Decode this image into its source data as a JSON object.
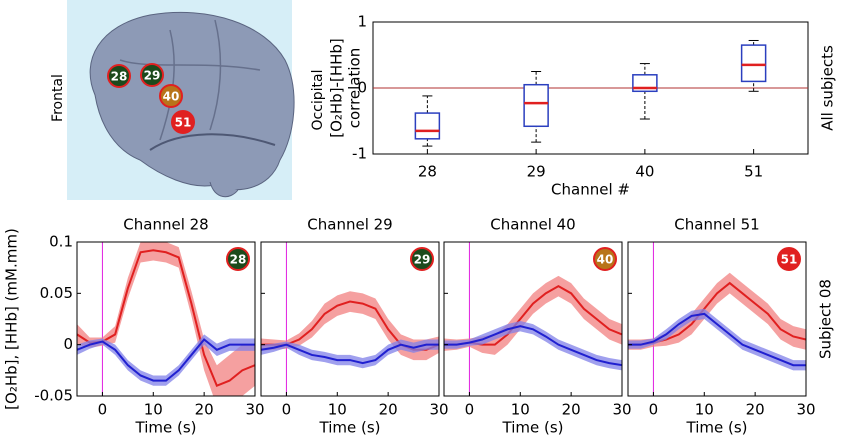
{
  "brain": {
    "left_label": "Frontal",
    "right_label": "Occipital",
    "badges": [
      "28",
      "29",
      "40",
      "51"
    ]
  },
  "chart_data": [
    {
      "type": "box",
      "ylabel": [
        "[O₂Hb]-[HHb]",
        "correlation"
      ],
      "xlabel": "Channel #",
      "side_label": "All subjects",
      "categories": [
        "28",
        "29",
        "40",
        "51"
      ],
      "ylim": [
        -1,
        1
      ],
      "yticks": [
        -1,
        0,
        1
      ],
      "reference_line": 0,
      "box_color": "#2b3fbf",
      "median_color": "#e02020",
      "reference_color": "#b03030",
      "boxes": [
        {
          "low": -0.88,
          "q1": -0.77,
          "median": -0.65,
          "q3": -0.38,
          "high": -0.12
        },
        {
          "low": -0.82,
          "q1": -0.58,
          "median": -0.23,
          "q3": 0.05,
          "high": 0.25
        },
        {
          "low": -0.47,
          "q1": -0.05,
          "median": 0.0,
          "q3": 0.2,
          "high": 0.37
        },
        {
          "low": -0.05,
          "q1": 0.1,
          "median": 0.35,
          "q3": 0.65,
          "high": 0.72
        }
      ]
    },
    {
      "type": "line",
      "title": "Channel 28",
      "badge": "28",
      "badge_color": "#1c4a1c",
      "ylabel": "[O₂Hb], [HHb] (mM.mm)",
      "xlabel": "Time (s)",
      "ytick_labels": true,
      "x": [
        -5,
        -2.5,
        0,
        2.5,
        5,
        7.5,
        10,
        12.5,
        15,
        17.5,
        20,
        22.5,
        25,
        27.5,
        30
      ],
      "xlim": [
        -5,
        30
      ],
      "xticks": [
        0,
        10,
        20,
        30
      ],
      "ylim": [
        -0.05,
        0.1
      ],
      "yticks": [
        -0.05,
        0,
        0.05,
        0.1
      ],
      "event_line": 0,
      "series": [
        {
          "color": "#e02020",
          "band_color": "#f28080",
          "values": [
            0.01,
            0.002,
            0.003,
            0.01,
            0.055,
            0.09,
            0.092,
            0.09,
            0.085,
            0.04,
            -0.01,
            -0.04,
            -0.035,
            -0.025,
            -0.02
          ],
          "errors": [
            0.01,
            0.005,
            0.004,
            0.008,
            0.01,
            0.01,
            0.01,
            0.01,
            0.01,
            0.012,
            0.015,
            0.02,
            0.025,
            0.025,
            0.02
          ]
        },
        {
          "color": "#2020d0",
          "band_color": "#8080e8",
          "values": [
            -0.005,
            0.0,
            0.003,
            -0.005,
            -0.02,
            -0.03,
            -0.035,
            -0.035,
            -0.025,
            -0.01,
            0.005,
            -0.005,
            0.0,
            0.0,
            0.0
          ],
          "errors": [
            0.005,
            0.004,
            0.003,
            0.005,
            0.005,
            0.005,
            0.005,
            0.005,
            0.005,
            0.005,
            0.005,
            0.006,
            0.006,
            0.006,
            0.006
          ]
        }
      ]
    },
    {
      "type": "line",
      "title": "Channel 29",
      "badge": "29",
      "badge_color": "#1c4a1c",
      "xlabel": "Time (s)",
      "ytick_labels": false,
      "x": [
        -5,
        -2.5,
        0,
        2.5,
        5,
        7.5,
        10,
        12.5,
        15,
        17.5,
        20,
        22.5,
        25,
        27.5,
        30
      ],
      "xlim": [
        -5,
        30
      ],
      "xticks": [
        0,
        10,
        20,
        30
      ],
      "ylim": [
        -0.05,
        0.1
      ],
      "yticks": [
        -0.05,
        0,
        0.05,
        0.1
      ],
      "event_line": 0,
      "series": [
        {
          "color": "#e02020",
          "band_color": "#f28080",
          "values": [
            0.0,
            0.0,
            0.0,
            0.005,
            0.015,
            0.03,
            0.038,
            0.042,
            0.04,
            0.035,
            0.015,
            0.0,
            -0.005,
            -0.005,
            0.0
          ],
          "errors": [
            0.006,
            0.005,
            0.004,
            0.006,
            0.008,
            0.01,
            0.01,
            0.01,
            0.01,
            0.01,
            0.01,
            0.01,
            0.01,
            0.01,
            0.008
          ]
        },
        {
          "color": "#2020d0",
          "band_color": "#8080e8",
          "values": [
            -0.005,
            -0.003,
            0.0,
            -0.005,
            -0.01,
            -0.012,
            -0.015,
            -0.015,
            -0.018,
            -0.015,
            -0.005,
            0.0,
            -0.003,
            0.0,
            0.0
          ],
          "errors": [
            0.005,
            0.004,
            0.003,
            0.005,
            0.005,
            0.005,
            0.005,
            0.005,
            0.005,
            0.005,
            0.005,
            0.005,
            0.005,
            0.005,
            0.005
          ]
        }
      ]
    },
    {
      "type": "line",
      "title": "Channel 40",
      "badge": "40",
      "badge_color": "#b8741a",
      "xlabel": "Time (s)",
      "ytick_labels": false,
      "x": [
        -5,
        -2.5,
        0,
        2.5,
        5,
        7.5,
        10,
        12.5,
        15,
        17.5,
        20,
        22.5,
        25,
        27.5,
        30
      ],
      "xlim": [
        -5,
        30
      ],
      "xticks": [
        0,
        10,
        20,
        30
      ],
      "ylim": [
        -0.05,
        0.1
      ],
      "yticks": [
        -0.05,
        0,
        0.05,
        0.1
      ],
      "event_line": 0,
      "series": [
        {
          "color": "#e02020",
          "band_color": "#f28080",
          "values": [
            0.0,
            0.0,
            0.002,
            0.0,
            0.0,
            0.01,
            0.025,
            0.04,
            0.05,
            0.057,
            0.05,
            0.035,
            0.025,
            0.015,
            0.01
          ],
          "errors": [
            0.006,
            0.005,
            0.004,
            0.008,
            0.01,
            0.01,
            0.01,
            0.01,
            0.01,
            0.01,
            0.01,
            0.01,
            0.01,
            0.01,
            0.01
          ]
        },
        {
          "color": "#2020d0",
          "band_color": "#8080e8",
          "values": [
            0.0,
            0.0,
            0.002,
            0.005,
            0.01,
            0.015,
            0.018,
            0.015,
            0.008,
            0.0,
            -0.005,
            -0.01,
            -0.015,
            -0.018,
            -0.02
          ],
          "errors": [
            0.004,
            0.004,
            0.003,
            0.005,
            0.005,
            0.005,
            0.005,
            0.005,
            0.005,
            0.005,
            0.005,
            0.005,
            0.005,
            0.005,
            0.005
          ]
        }
      ]
    },
    {
      "type": "line",
      "title": "Channel 51",
      "badge": "51",
      "badge_color": "#e02020",
      "xlabel": "Time (s)",
      "side_label": "Subject 08",
      "ytick_labels": false,
      "x": [
        -5,
        -2.5,
        0,
        2.5,
        5,
        7.5,
        10,
        12.5,
        15,
        17.5,
        20,
        22.5,
        25,
        27.5,
        30
      ],
      "xlim": [
        -5,
        30
      ],
      "xticks": [
        0,
        10,
        20,
        30
      ],
      "ylim": [
        -0.05,
        0.1
      ],
      "yticks": [
        -0.05,
        0,
        0.05,
        0.1
      ],
      "event_line": 0,
      "series": [
        {
          "color": "#e02020",
          "band_color": "#f28080",
          "values": [
            0.0,
            0.0,
            0.002,
            0.005,
            0.01,
            0.02,
            0.035,
            0.05,
            0.06,
            0.05,
            0.04,
            0.03,
            0.015,
            0.008,
            0.005
          ],
          "errors": [
            0.005,
            0.005,
            0.004,
            0.006,
            0.008,
            0.01,
            0.01,
            0.01,
            0.01,
            0.01,
            0.01,
            0.01,
            0.01,
            0.01,
            0.01
          ]
        },
        {
          "color": "#2020d0",
          "band_color": "#8080e8",
          "values": [
            0.0,
            0.0,
            0.003,
            0.01,
            0.02,
            0.028,
            0.03,
            0.02,
            0.01,
            0.0,
            -0.005,
            -0.01,
            -0.015,
            -0.02,
            -0.02
          ],
          "errors": [
            0.004,
            0.004,
            0.003,
            0.005,
            0.005,
            0.005,
            0.005,
            0.005,
            0.005,
            0.005,
            0.005,
            0.005,
            0.005,
            0.005,
            0.005
          ]
        }
      ]
    }
  ]
}
